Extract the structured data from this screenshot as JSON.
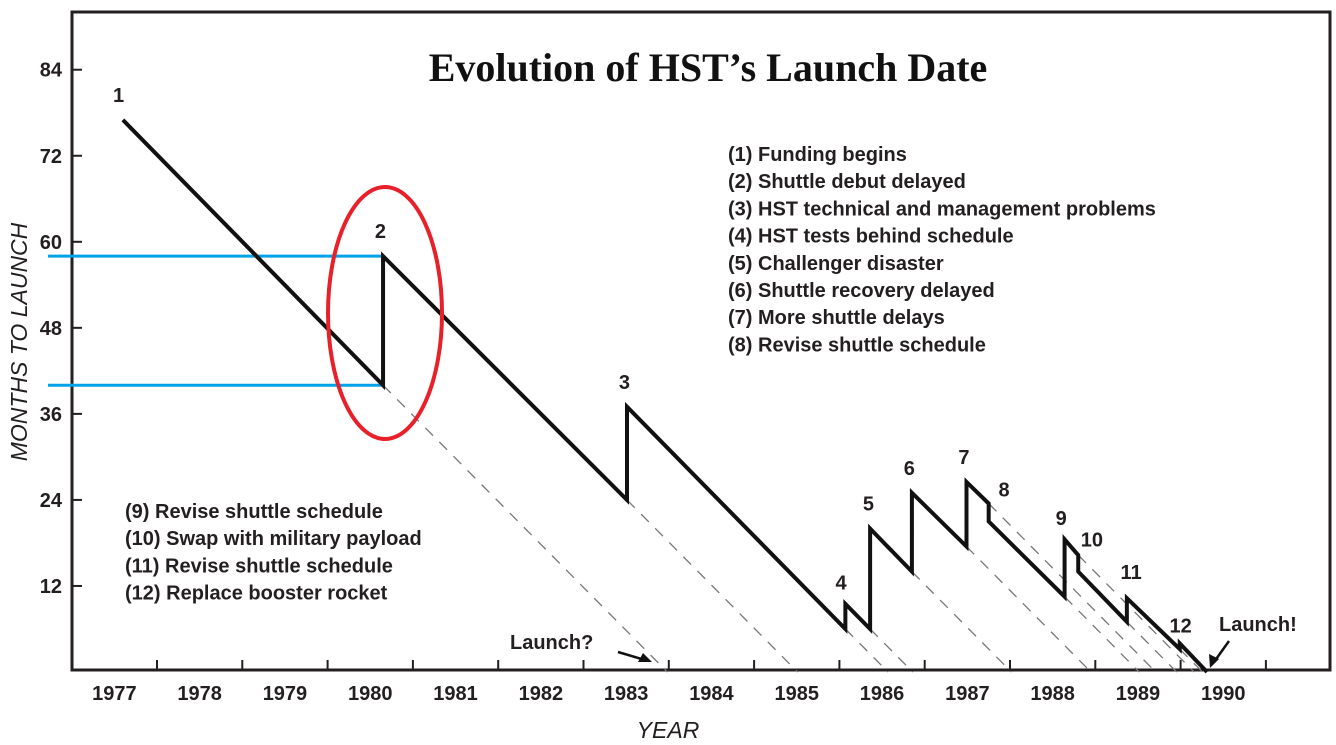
{
  "chart_data": {
    "type": "line",
    "title": "Evolution of HST’s Launch Date",
    "xlabel": "YEAR",
    "ylabel": "MONTHS TO LAUNCH",
    "xlim": [
      1977.03,
      1991.75
    ],
    "ylim": [
      0,
      92
    ],
    "x_ticks": [
      "1977",
      "1978",
      "1979",
      "1980",
      "1981",
      "1982",
      "1983",
      "1984",
      "1985",
      "1986",
      "1987",
      "1988",
      "1989",
      "1990"
    ],
    "y_ticks": [
      12,
      24,
      36,
      48,
      60,
      72,
      84
    ],
    "grid": false,
    "series": [
      {
        "name": "Months to launch",
        "points": [
          [
            1977.6,
            77
          ],
          [
            1980.65,
            40
          ],
          [
            1980.65,
            58
          ],
          [
            1983.51,
            24
          ],
          [
            1983.51,
            37
          ],
          [
            1986.07,
            6
          ],
          [
            1986.07,
            9.5
          ],
          [
            1986.36,
            6
          ],
          [
            1986.36,
            20
          ],
          [
            1986.85,
            14
          ],
          [
            1986.85,
            25
          ],
          [
            1987.49,
            17.5
          ],
          [
            1987.49,
            26.5
          ],
          [
            1987.75,
            23.5
          ],
          [
            1987.75,
            21
          ],
          [
            1988.64,
            10.5
          ],
          [
            1988.64,
            18.5
          ],
          [
            1988.8,
            16.3
          ],
          [
            1988.8,
            14
          ],
          [
            1989.37,
            7
          ],
          [
            1989.37,
            10.3
          ],
          [
            1989.99,
            3.2
          ],
          [
            1989.99,
            4
          ],
          [
            1990.31,
            0
          ]
        ]
      }
    ],
    "projected_dashed_from": [
      [
        1980.65,
        40
      ],
      [
        1983.51,
        24
      ],
      [
        1986.07,
        6
      ],
      [
        1986.36,
        6
      ],
      [
        1986.85,
        14
      ],
      [
        1987.49,
        17.5
      ],
      [
        1987.75,
        23.5
      ],
      [
        1988.64,
        10.5
      ],
      [
        1988.8,
        16.3
      ],
      [
        1989.37,
        7
      ],
      [
        1989.99,
        3.2
      ]
    ],
    "event_markers": [
      {
        "label": "1",
        "x": 1977.55,
        "y": 79.5
      },
      {
        "label": "2",
        "x": 1980.62,
        "y": 60.5
      },
      {
        "label": "3",
        "x": 1983.48,
        "y": 39.5
      },
      {
        "label": "4",
        "x": 1986.02,
        "y": 11.5
      },
      {
        "label": "5",
        "x": 1986.34,
        "y": 22.5
      },
      {
        "label": "6",
        "x": 1986.82,
        "y": 27.5
      },
      {
        "label": "7",
        "x": 1987.46,
        "y": 29
      },
      {
        "label": "8",
        "x": 1987.93,
        "y": 24.5
      },
      {
        "label": "9",
        "x": 1988.6,
        "y": 20.5
      },
      {
        "label": "10",
        "x": 1988.96,
        "y": 17.5
      },
      {
        "label": "11",
        "x": 1989.42,
        "y": 13
      },
      {
        "label": "12",
        "x": 1990.0,
        "y": 5.5
      }
    ],
    "highlight_levels": [
      58,
      40
    ],
    "annotations": {
      "launch_question": "Launch?",
      "launch_actual": "Launch!"
    },
    "legend_right": [
      "(1) Funding begins",
      "(2) Shuttle debut delayed",
      "(3) HST technical and management problems",
      "(4) HST tests behind schedule",
      "(5) Challenger disaster",
      "(6) Shuttle recovery delayed",
      "(7) More shuttle delays",
      "(8) Revise shuttle schedule"
    ],
    "legend_left": [
      "(9) Revise shuttle schedule",
      "(10) Swap with military payload",
      "(11) Revise shuttle schedule",
      "(12) Replace booster rocket"
    ],
    "colors": {
      "line": "#111111",
      "highlight": "#00a2e8",
      "circle": "#e8202a",
      "dash": "#777777"
    }
  }
}
